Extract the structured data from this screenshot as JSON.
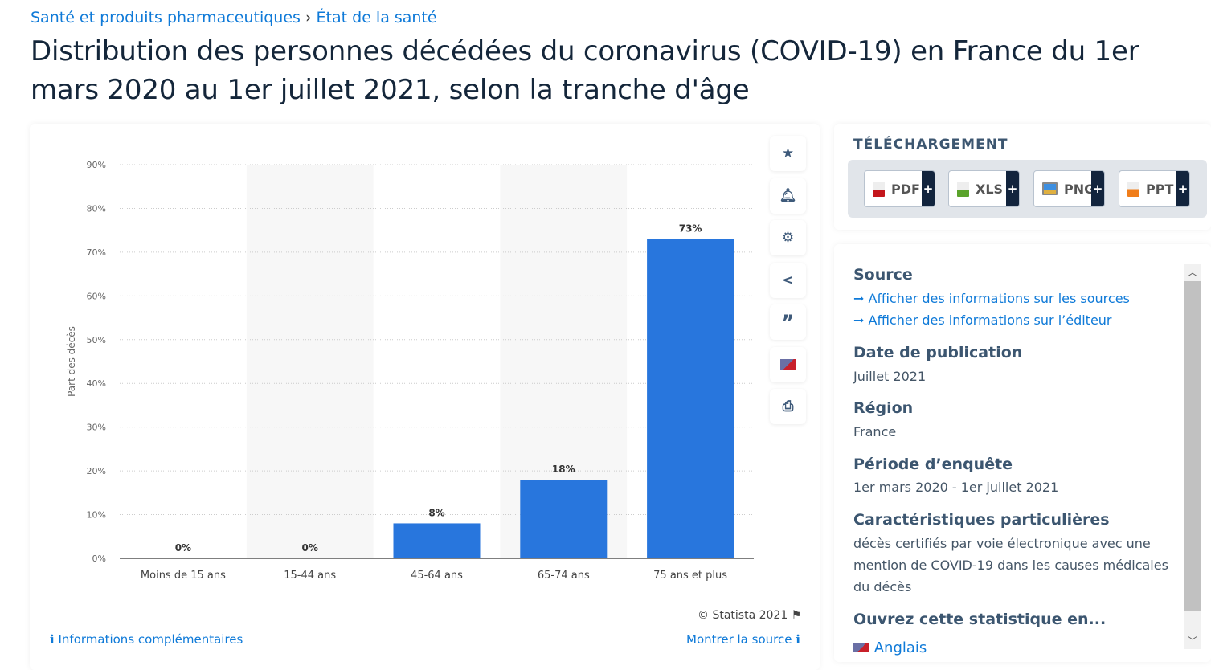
{
  "breadcrumb": [
    "Santé et produits pharmaceutiques",
    "État de la santé"
  ],
  "title": "Distribution des personnes décédées du coronavirus (COVID-19) en France du 1er mars 2020 au 1er juillet 2021, selon la tranche d'âge",
  "toolbar": [
    "star-icon",
    "bell-icon",
    "gear-icon",
    "share-icon",
    "quote-icon",
    "flag-us-uk-icon",
    "print-icon"
  ],
  "chart_data": {
    "type": "bar",
    "categories": [
      "Moins de 15 ans",
      "15-44 ans",
      "45-64 ans",
      "65-74 ans",
      "75 ans et plus"
    ],
    "values": [
      0,
      0,
      8,
      18,
      73
    ],
    "data_labels": [
      "0%",
      "0%",
      "8%",
      "18%",
      "73%"
    ],
    "ylabel": "Part des décès",
    "ylim": [
      0,
      90
    ],
    "yticks": [
      "0%",
      "10%",
      "20%",
      "30%",
      "40%",
      "50%",
      "60%",
      "70%",
      "80%",
      "90%"
    ],
    "grid": true,
    "bar_color": "#2876dd"
  },
  "copyright": "© Statista 2021",
  "footer": {
    "info": "Informations complémentaires",
    "source": "Montrer la source"
  },
  "download": {
    "title": "TÉLÉCHARGEMENT",
    "formats": [
      "PDF",
      "XLS",
      "PNG",
      "PPT"
    ],
    "plus": "+"
  },
  "info": {
    "source_h": "Source",
    "source_link1": "Afficher des informations sur les sources",
    "source_link2": "Afficher des informations sur l’éditeur",
    "pub_h": "Date de publication",
    "pub": "Juillet 2021",
    "region_h": "Région",
    "region": "France",
    "period_h": "Période d’enquête",
    "period": "1er mars 2020 - 1er juillet 2021",
    "char_h": "Caractéristiques particulières",
    "char": "décès certifiés par voie électronique avec une mention de COVID-19 dans les causes médicales du décès",
    "open_h": "Ouvrez cette statistique en...",
    "open_lang": "Anglais"
  }
}
